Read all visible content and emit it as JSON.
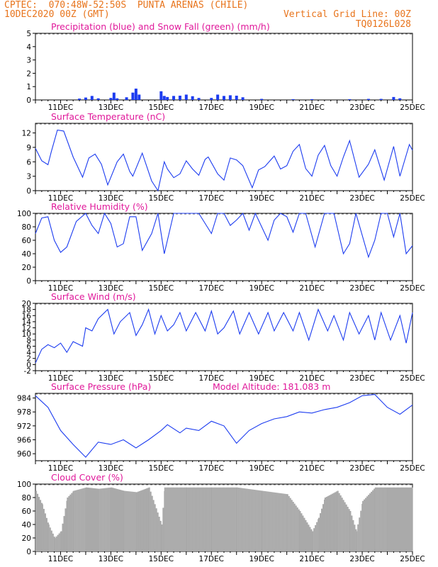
{
  "header": {
    "line1_left": "CPTEC:  070:48W-52:50S  PUNTA ARENAS (CHILE)",
    "line2_left": "10DEC2020 00Z (GMT)",
    "line2_right": "Vertical Grid Line: 00Z",
    "line3_right": "TQ0126L028"
  },
  "colors": {
    "header": "#e8741c",
    "panel_title": "#e0189a",
    "series": "#1c3cf0",
    "snow": "#18a018",
    "cloud": "#a9a9a9",
    "axis": "#000000"
  },
  "x_axis": {
    "labels": [
      "11DEC",
      "13DEC",
      "15DEC",
      "17DEC",
      "19DEC",
      "21DEC",
      "23DEC",
      "25DEC"
    ]
  },
  "chart_data": [
    {
      "type": "bar",
      "title": "Precipitation (blue) and Snow Fall (green) (mm/h)",
      "ylim": [
        0,
        5
      ],
      "yticks": [
        "0",
        "1",
        "2",
        "3",
        "4",
        "5"
      ],
      "x_start": "2020-12-10T00Z",
      "x_end": "2020-12-25T00Z",
      "series": [
        {
          "name": "Precipitation",
          "points": [
            [
              "2020-12-11T18Z",
              0.1
            ],
            [
              "2020-12-12T00Z",
              0.18
            ],
            [
              "2020-12-12T06Z",
              0.3
            ],
            [
              "2020-12-12T12Z",
              0.12
            ],
            [
              "2020-12-13T00Z",
              0.15
            ],
            [
              "2020-12-13T03Z",
              0.55
            ],
            [
              "2020-12-13T06Z",
              0.12
            ],
            [
              "2020-12-13T15Z",
              0.2
            ],
            [
              "2020-12-13T21Z",
              0.55
            ],
            [
              "2020-12-14T00Z",
              0.85
            ],
            [
              "2020-12-14T03Z",
              0.4
            ],
            [
              "2020-12-15T00Z",
              0.65
            ],
            [
              "2020-12-15T03Z",
              0.3
            ],
            [
              "2020-12-15T06Z",
              0.22
            ],
            [
              "2020-12-15T12Z",
              0.3
            ],
            [
              "2020-12-15T18Z",
              0.32
            ],
            [
              "2020-12-16T00Z",
              0.4
            ],
            [
              "2020-12-16T06Z",
              0.28
            ],
            [
              "2020-12-16T12Z",
              0.15
            ],
            [
              "2020-12-17T00Z",
              0.15
            ],
            [
              "2020-12-17T06Z",
              0.4
            ],
            [
              "2020-12-17T12Z",
              0.3
            ],
            [
              "2020-12-17T18Z",
              0.35
            ],
            [
              "2020-12-18T00Z",
              0.32
            ],
            [
              "2020-12-18T06Z",
              0.2
            ],
            [
              "2020-12-19T00Z",
              0.08
            ],
            [
              "2020-12-20T06Z",
              0.06
            ],
            [
              "2020-12-21T00Z",
              0.06
            ],
            [
              "2020-12-22T12Z",
              0.06
            ],
            [
              "2020-12-23T06Z",
              0.08
            ],
            [
              "2020-12-23T18Z",
              0.08
            ],
            [
              "2020-12-24T06Z",
              0.22
            ],
            [
              "2020-12-24T12Z",
              0.12
            ]
          ]
        },
        {
          "name": "Snow Fall",
          "points": []
        }
      ]
    },
    {
      "type": "line",
      "title": "Surface Temperature (nC)",
      "ylim": [
        0,
        14
      ],
      "yticks": [
        "0",
        "3",
        "6",
        "9",
        "12"
      ],
      "points": [
        [
          "2020-12-10T00Z",
          8.8
        ],
        [
          "2020-12-10T06Z",
          6.2
        ],
        [
          "2020-12-10T12Z",
          5.4
        ],
        [
          "2020-12-10T15Z",
          8
        ],
        [
          "2020-12-10T21Z",
          12.6
        ],
        [
          "2020-12-11T03Z",
          12.4
        ],
        [
          "2020-12-11T12Z",
          7
        ],
        [
          "2020-12-11T21Z",
          2.8
        ],
        [
          "2020-12-12T03Z",
          6.8
        ],
        [
          "2020-12-12T09Z",
          7.6
        ],
        [
          "2020-12-12T15Z",
          5.5
        ],
        [
          "2020-12-12T21Z",
          1.2
        ],
        [
          "2020-12-13T06Z",
          6
        ],
        [
          "2020-12-13T12Z",
          7.6
        ],
        [
          "2020-12-13T18Z",
          4
        ],
        [
          "2020-12-13T21Z",
          3
        ],
        [
          "2020-12-14T06Z",
          7.8
        ],
        [
          "2020-12-14T15Z",
          2
        ],
        [
          "2020-12-14T21Z",
          0
        ],
        [
          "2020-12-15T03Z",
          6
        ],
        [
          "2020-12-15T06Z",
          4.5
        ],
        [
          "2020-12-15T12Z",
          2.7
        ],
        [
          "2020-12-15T18Z",
          3.5
        ],
        [
          "2020-12-16T00Z",
          6.2
        ],
        [
          "2020-12-16T06Z",
          4.5
        ],
        [
          "2020-12-16T12Z",
          3.2
        ],
        [
          "2020-12-16T18Z",
          6.5
        ],
        [
          "2020-12-16T21Z",
          7
        ],
        [
          "2020-12-17T06Z",
          3.5
        ],
        [
          "2020-12-17T12Z",
          2.2
        ],
        [
          "2020-12-17T18Z",
          6.8
        ],
        [
          "2020-12-18T00Z",
          6.4
        ],
        [
          "2020-12-18T06Z",
          5.2
        ],
        [
          "2020-12-18T15Z",
          0.6
        ],
        [
          "2020-12-18T21Z",
          4.3
        ],
        [
          "2020-12-19T03Z",
          5
        ],
        [
          "2020-12-19T12Z",
          7.2
        ],
        [
          "2020-12-19T18Z",
          4.5
        ],
        [
          "2020-12-20T00Z",
          5.2
        ],
        [
          "2020-12-20T06Z",
          8.2
        ],
        [
          "2020-12-20T12Z",
          9.6
        ],
        [
          "2020-12-20T18Z",
          4.6
        ],
        [
          "2020-12-21T00Z",
          3
        ],
        [
          "2020-12-21T06Z",
          7.4
        ],
        [
          "2020-12-21T12Z",
          9.4
        ],
        [
          "2020-12-21T18Z",
          5.2
        ],
        [
          "2020-12-22T00Z",
          3
        ],
        [
          "2020-12-22T06Z",
          7
        ],
        [
          "2020-12-22T12Z",
          10.4
        ],
        [
          "2020-12-22T21Z",
          2.8
        ],
        [
          "2020-12-23T06Z",
          5.5
        ],
        [
          "2020-12-23T12Z",
          8.5
        ],
        [
          "2020-12-23T21Z",
          2.2
        ],
        [
          "2020-12-24T06Z",
          9.2
        ],
        [
          "2020-12-24T12Z",
          3
        ],
        [
          "2020-12-24T21Z",
          9.6
        ],
        [
          "2020-12-25T00Z",
          8.4
        ]
      ]
    },
    {
      "type": "line",
      "title": "Relative Humidity (%)",
      "ylim": [
        0,
        100
      ],
      "yticks": [
        "0",
        "20",
        "40",
        "60",
        "80",
        "100"
      ],
      "points": [
        [
          "2020-12-10T00Z",
          70
        ],
        [
          "2020-12-10T06Z",
          93
        ],
        [
          "2020-12-10T12Z",
          95
        ],
        [
          "2020-12-10T18Z",
          60
        ],
        [
          "2020-12-11T00Z",
          42
        ],
        [
          "2020-12-11T06Z",
          50
        ],
        [
          "2020-12-11T15Z",
          88
        ],
        [
          "2020-12-12T00Z",
          100
        ],
        [
          "2020-12-12T06Z",
          82
        ],
        [
          "2020-12-12T12Z",
          70
        ],
        [
          "2020-12-12T18Z",
          100
        ],
        [
          "2020-12-13T00Z",
          85
        ],
        [
          "2020-12-13T06Z",
          50
        ],
        [
          "2020-12-13T12Z",
          55
        ],
        [
          "2020-12-13T18Z",
          95
        ],
        [
          "2020-12-14T00Z",
          95
        ],
        [
          "2020-12-14T06Z",
          45
        ],
        [
          "2020-12-14T15Z",
          70
        ],
        [
          "2020-12-14T21Z",
          100
        ],
        [
          "2020-12-15T03Z",
          40
        ],
        [
          "2020-12-15T12Z",
          100
        ],
        [
          "2020-12-16T00Z",
          100
        ],
        [
          "2020-12-16T12Z",
          100
        ],
        [
          "2020-12-17T00Z",
          70
        ],
        [
          "2020-12-17T06Z",
          100
        ],
        [
          "2020-12-17T12Z",
          100
        ],
        [
          "2020-12-17T18Z",
          82
        ],
        [
          "2020-12-18T00Z",
          90
        ],
        [
          "2020-12-18T06Z",
          100
        ],
        [
          "2020-12-18T12Z",
          75
        ],
        [
          "2020-12-18T18Z",
          100
        ],
        [
          "2020-12-19T06Z",
          60
        ],
        [
          "2020-12-19T12Z",
          90
        ],
        [
          "2020-12-19T18Z",
          100
        ],
        [
          "2020-12-20T00Z",
          95
        ],
        [
          "2020-12-20T06Z",
          72
        ],
        [
          "2020-12-20T12Z",
          100
        ],
        [
          "2020-12-20T18Z",
          100
        ],
        [
          "2020-12-21T03Z",
          50
        ],
        [
          "2020-12-21T12Z",
          100
        ],
        [
          "2020-12-21T21Z",
          100
        ],
        [
          "2020-12-22T06Z",
          40
        ],
        [
          "2020-12-22T12Z",
          55
        ],
        [
          "2020-12-22T18Z",
          100
        ],
        [
          "2020-12-23T06Z",
          35
        ],
        [
          "2020-12-23T12Z",
          60
        ],
        [
          "2020-12-23T18Z",
          100
        ],
        [
          "2020-12-24T00Z",
          100
        ],
        [
          "2020-12-24T06Z",
          65
        ],
        [
          "2020-12-24T12Z",
          100
        ],
        [
          "2020-12-24T18Z",
          40
        ],
        [
          "2020-12-25T00Z",
          52
        ]
      ]
    },
    {
      "type": "line",
      "title": "Surface Wind (m/s)",
      "ylim": [
        -2,
        20
      ],
      "yticks": [
        "-2",
        "0",
        "2",
        "4",
        "6",
        "8",
        "10",
        "12",
        "14",
        "16",
        "18",
        "20"
      ],
      "points": [
        [
          "2020-12-10T00Z",
          0.5
        ],
        [
          "2020-12-10T06Z",
          5
        ],
        [
          "2020-12-10T12Z",
          6.5
        ],
        [
          "2020-12-10T18Z",
          5.5
        ],
        [
          "2020-12-11T00Z",
          7
        ],
        [
          "2020-12-11T06Z",
          4
        ],
        [
          "2020-12-11T12Z",
          7.5
        ],
        [
          "2020-12-11T21Z",
          6
        ],
        [
          "2020-12-12T00Z",
          12
        ],
        [
          "2020-12-12T06Z",
          11
        ],
        [
          "2020-12-12T12Z",
          15
        ],
        [
          "2020-12-12T21Z",
          18
        ],
        [
          "2020-12-13T03Z",
          10
        ],
        [
          "2020-12-13T09Z",
          14
        ],
        [
          "2020-12-13T18Z",
          17
        ],
        [
          "2020-12-14T00Z",
          9.5
        ],
        [
          "2020-12-14T06Z",
          13
        ],
        [
          "2020-12-14T12Z",
          18
        ],
        [
          "2020-12-14T18Z",
          10
        ],
        [
          "2020-12-15T00Z",
          16
        ],
        [
          "2020-12-15T06Z",
          11
        ],
        [
          "2020-12-15T12Z",
          13
        ],
        [
          "2020-12-15T18Z",
          17
        ],
        [
          "2020-12-16T00Z",
          11
        ],
        [
          "2020-12-16T09Z",
          17
        ],
        [
          "2020-12-16T18Z",
          11
        ],
        [
          "2020-12-17T00Z",
          17.5
        ],
        [
          "2020-12-17T06Z",
          10
        ],
        [
          "2020-12-17T12Z",
          12
        ],
        [
          "2020-12-17T21Z",
          17.5
        ],
        [
          "2020-12-18T03Z",
          10
        ],
        [
          "2020-12-18T12Z",
          17
        ],
        [
          "2020-12-18T21Z",
          10
        ],
        [
          "2020-12-19T06Z",
          17
        ],
        [
          "2020-12-19T12Z",
          11
        ],
        [
          "2020-12-19T21Z",
          17
        ],
        [
          "2020-12-20T06Z",
          11
        ],
        [
          "2020-12-20T12Z",
          17
        ],
        [
          "2020-12-20T21Z",
          8
        ],
        [
          "2020-12-21T06Z",
          18
        ],
        [
          "2020-12-21T15Z",
          11
        ],
        [
          "2020-12-21T21Z",
          16
        ],
        [
          "2020-12-22T06Z",
          8
        ],
        [
          "2020-12-22T12Z",
          17
        ],
        [
          "2020-12-22T21Z",
          10
        ],
        [
          "2020-12-23T06Z",
          16
        ],
        [
          "2020-12-23T12Z",
          8
        ],
        [
          "2020-12-23T18Z",
          17
        ],
        [
          "2020-12-24T03Z",
          8
        ],
        [
          "2020-12-24T12Z",
          16
        ],
        [
          "2020-12-24T18Z",
          7
        ],
        [
          "2020-12-25T00Z",
          17
        ]
      ]
    },
    {
      "type": "line",
      "title": "Surface Pressure (hPa)",
      "subtitle": "Model Altitude: 181.083 m",
      "ylim": [
        957,
        986
      ],
      "yticks": [
        "960",
        "966",
        "972",
        "978",
        "984"
      ],
      "points": [
        [
          "2020-12-10T00Z",
          985
        ],
        [
          "2020-12-10T12Z",
          980
        ],
        [
          "2020-12-11T00Z",
          970
        ],
        [
          "2020-12-11T12Z",
          964
        ],
        [
          "2020-12-12T00Z",
          958.5
        ],
        [
          "2020-12-12T12Z",
          965
        ],
        [
          "2020-12-13T00Z",
          964
        ],
        [
          "2020-12-13T12Z",
          966
        ],
        [
          "2020-12-14T00Z",
          962.5
        ],
        [
          "2020-12-14T12Z",
          966
        ],
        [
          "2020-12-15T00Z",
          970
        ],
        [
          "2020-12-15T06Z",
          972.5
        ],
        [
          "2020-12-15T18Z",
          969
        ],
        [
          "2020-12-16T00Z",
          971
        ],
        [
          "2020-12-16T12Z",
          970
        ],
        [
          "2020-12-17T00Z",
          974
        ],
        [
          "2020-12-17T12Z",
          972
        ],
        [
          "2020-12-18T00Z",
          964.5
        ],
        [
          "2020-12-18T12Z",
          970
        ],
        [
          "2020-12-19T00Z",
          973
        ],
        [
          "2020-12-19T12Z",
          975
        ],
        [
          "2020-12-20T00Z",
          976
        ],
        [
          "2020-12-20T12Z",
          978
        ],
        [
          "2020-12-21T00Z",
          977.5
        ],
        [
          "2020-12-21T12Z",
          979
        ],
        [
          "2020-12-22T00Z",
          980
        ],
        [
          "2020-12-22T12Z",
          982
        ],
        [
          "2020-12-23T00Z",
          985
        ],
        [
          "2020-12-23T12Z",
          985.5
        ],
        [
          "2020-12-24T00Z",
          980
        ],
        [
          "2020-12-24T12Z",
          977
        ],
        [
          "2020-12-25T00Z",
          981
        ]
      ]
    },
    {
      "type": "bar",
      "title": "Cloud Cover (%)",
      "ylim": [
        0,
        100
      ],
      "yticks": [
        "0",
        "20",
        "40",
        "60",
        "80",
        "100"
      ],
      "points": [
        [
          "2020-12-10T00Z",
          90
        ],
        [
          "2020-12-10T06Z",
          70
        ],
        [
          "2020-12-10T12Z",
          40
        ],
        [
          "2020-12-10T18Z",
          20
        ],
        [
          "2020-12-11T00Z",
          30
        ],
        [
          "2020-12-11T06Z",
          80
        ],
        [
          "2020-12-11T12Z",
          90
        ],
        [
          "2020-12-12T00Z",
          95
        ],
        [
          "2020-12-12T12Z",
          93
        ],
        [
          "2020-12-13T00Z",
          95
        ],
        [
          "2020-12-13T12Z",
          90
        ],
        [
          "2020-12-14T00Z",
          88
        ],
        [
          "2020-12-14T12Z",
          95
        ],
        [
          "2020-12-15T00Z",
          40
        ],
        [
          "2020-12-15T03Z",
          95
        ],
        [
          "2020-12-16T00Z",
          95
        ],
        [
          "2020-12-17T00Z",
          95
        ],
        [
          "2020-12-18T00Z",
          95
        ],
        [
          "2020-12-19T00Z",
          90
        ],
        [
          "2020-12-20T00Z",
          85
        ],
        [
          "2020-12-20T12Z",
          60
        ],
        [
          "2020-12-21T00Z",
          30
        ],
        [
          "2020-12-21T06Z",
          50
        ],
        [
          "2020-12-21T12Z",
          80
        ],
        [
          "2020-12-22T00Z",
          90
        ],
        [
          "2020-12-22T12Z",
          60
        ],
        [
          "2020-12-22T18Z",
          30
        ],
        [
          "2020-12-23T00Z",
          75
        ],
        [
          "2020-12-23T12Z",
          95
        ],
        [
          "2020-12-24T00Z",
          95
        ],
        [
          "2020-12-25T00Z",
          95
        ]
      ]
    }
  ]
}
